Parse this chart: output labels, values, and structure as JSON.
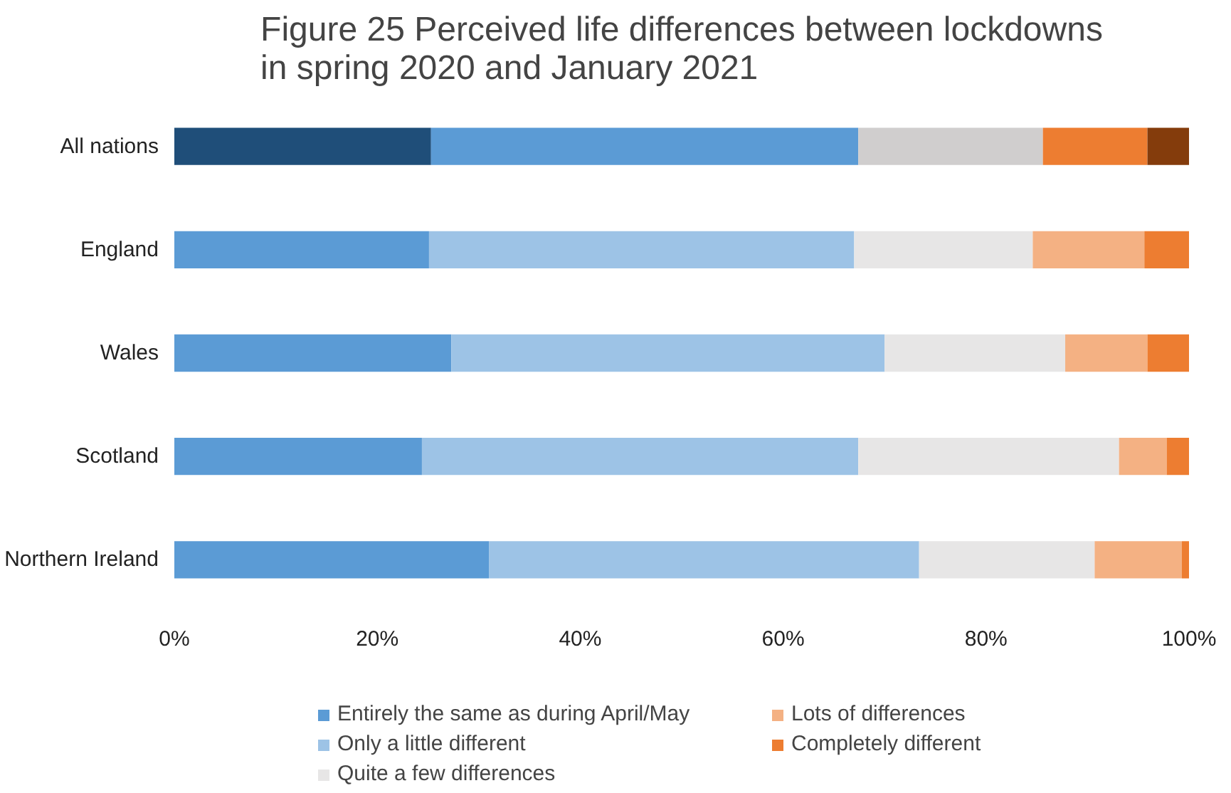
{
  "chart_data": {
    "type": "bar",
    "orientation": "horizontal",
    "stacked": true,
    "title": "Figure 25 Perceived life differences between lockdowns in spring 2020 and January 2021",
    "categories": [
      "All nations",
      "England",
      "Wales",
      "Scotland",
      "Northern Ireland"
    ],
    "series": [
      {
        "name": "Entirely the same as during April/May",
        "color": "#5b9bd5",
        "colors": [
          "#1f4e79",
          "#5b9bd5",
          "#5b9bd5",
          "#5b9bd5",
          "#5b9bd5"
        ],
        "values": [
          25.3,
          25.1,
          27.3,
          24.4,
          31.0
        ]
      },
      {
        "name": "Only a little different",
        "color": "#9dc3e6",
        "colors": [
          "#5b9bd5",
          "#9dc3e6",
          "#9dc3e6",
          "#9dc3e6",
          "#9dc3e6"
        ],
        "values": [
          42.1,
          41.9,
          42.7,
          43.0,
          42.4
        ]
      },
      {
        "name": "Quite a few differences",
        "color": "#e7e6e6",
        "colors": [
          "#d0cece",
          "#e7e6e6",
          "#e7e6e6",
          "#e7e6e6",
          "#e7e6e6"
        ],
        "values": [
          18.2,
          17.6,
          17.8,
          25.7,
          17.3
        ]
      },
      {
        "name": "Lots of differences",
        "color": "#f4b183",
        "colors": [
          "#ed7d31",
          "#f4b183",
          "#f4b183",
          "#f4b183",
          "#f4b183"
        ],
        "values": [
          10.3,
          11.0,
          8.1,
          4.7,
          8.6
        ]
      },
      {
        "name": "Completely different",
        "color": "#ed7d31",
        "colors": [
          "#843c0c",
          "#ed7d31",
          "#ed7d31",
          "#ed7d31",
          "#ed7d31"
        ],
        "values": [
          4.1,
          4.4,
          4.1,
          2.2,
          0.7
        ]
      }
    ],
    "xlim": [
      0,
      100
    ],
    "xticks": [
      {
        "value": 0,
        "label": "0%"
      },
      {
        "value": 20,
        "label": "20%"
      },
      {
        "value": 40,
        "label": "40%"
      },
      {
        "value": 60,
        "label": "60%"
      },
      {
        "value": 80,
        "label": "80%"
      },
      {
        "value": 100,
        "label": "100%"
      }
    ],
    "grid": false,
    "legend": "bottom"
  }
}
